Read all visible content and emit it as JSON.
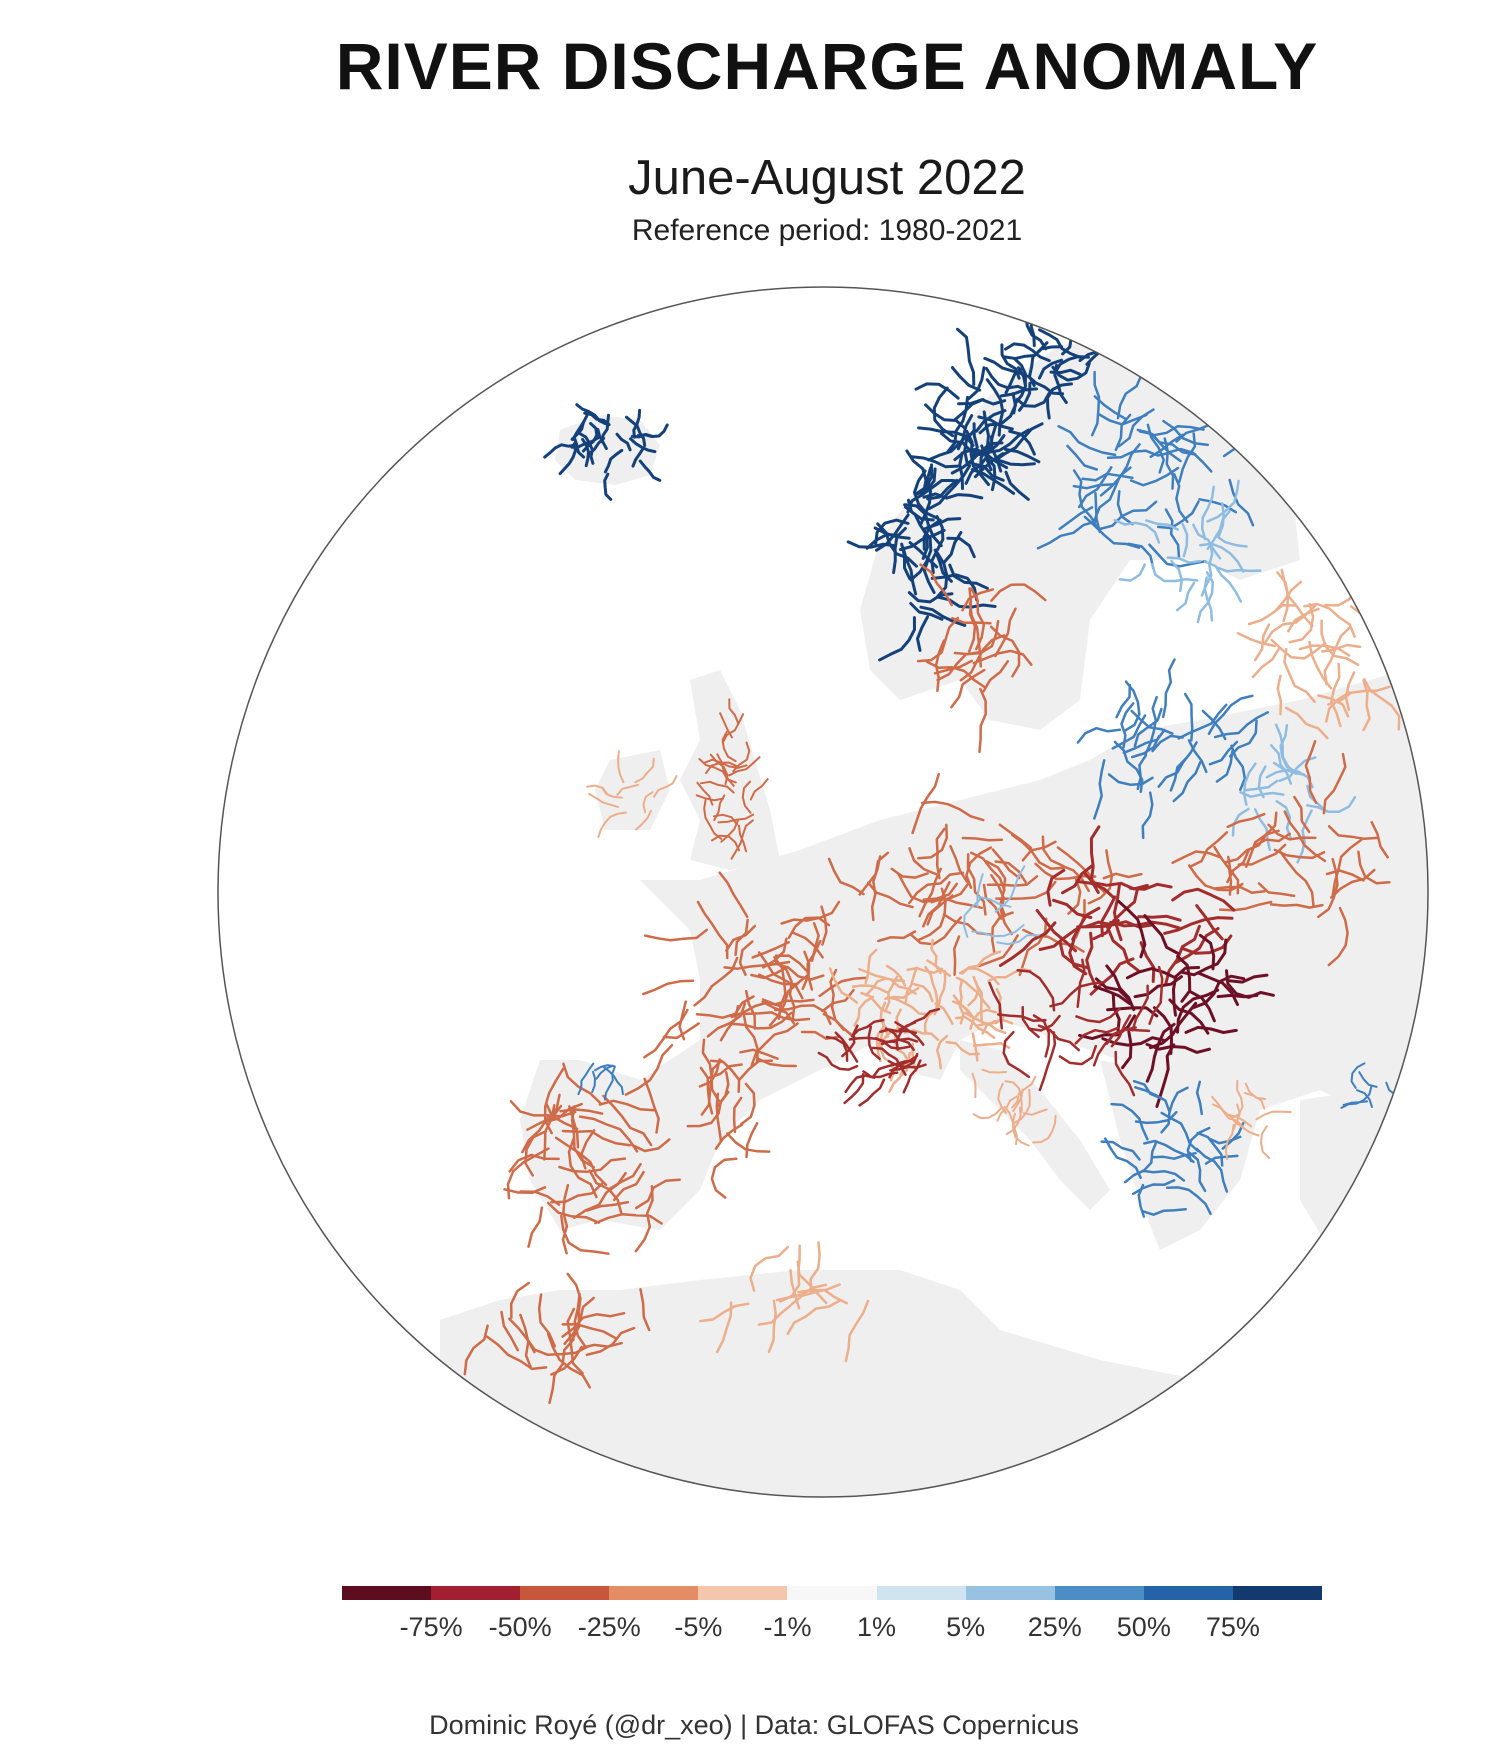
{
  "title": "RIVER DISCHARGE ANOMALY",
  "subtitle": "June-August 2022",
  "reference": "Reference period: 1980-2021",
  "credit": "Dominic Royé (@dr_xeo) | Data: GLOFAS Copernicus",
  "colors": {
    "land": "#efefef",
    "ocean": "#ffffff",
    "circle_outline": "#555555",
    "strong_blue": "#14417a",
    "mid_blue": "#3f7fbd",
    "light_blue": "#8fbde2",
    "light_red": "#ecae8b",
    "mid_red": "#cf6b48",
    "strong_red": "#a32d2d",
    "dark_red": "#6e1025"
  },
  "legend": {
    "colors": [
      "#5c0d1f",
      "#a11f2e",
      "#c8563d",
      "#e38c66",
      "#f4c6ab",
      "#f7f7f7",
      "#cfe3f1",
      "#97c2e1",
      "#4b8ec6",
      "#2463a8",
      "#123a6e"
    ],
    "labels": [
      "-75%",
      "-50%",
      "-25%",
      "-5%",
      "-1%",
      "1%",
      "5%",
      "25%",
      "50%",
      "75%"
    ]
  },
  "map_regions": [
    {
      "name": "Iceland",
      "anomaly": "strong positive"
    },
    {
      "name": "Norway",
      "anomaly": "strong positive"
    },
    {
      "name": "Northern Sweden",
      "anomaly": "strong positive"
    },
    {
      "name": "Finland",
      "anomaly": "positive"
    },
    {
      "name": "Southern Sweden",
      "anomaly": "negative"
    },
    {
      "name": "British Isles",
      "anomaly": "negative"
    },
    {
      "name": "France",
      "anomaly": "negative"
    },
    {
      "name": "Iberian Peninsula",
      "anomaly": "negative"
    },
    {
      "name": "Alps",
      "anomaly": "negative"
    },
    {
      "name": "Germany",
      "anomaly": "negative"
    },
    {
      "name": "Poland",
      "anomaly": "negative"
    },
    {
      "name": "Carpathians",
      "anomaly": "strong negative"
    },
    {
      "name": "Baltic States",
      "anomaly": "positive"
    },
    {
      "name": "Balkans",
      "anomaly": "positive"
    },
    {
      "name": "North Africa",
      "anomaly": "negative"
    }
  ]
}
